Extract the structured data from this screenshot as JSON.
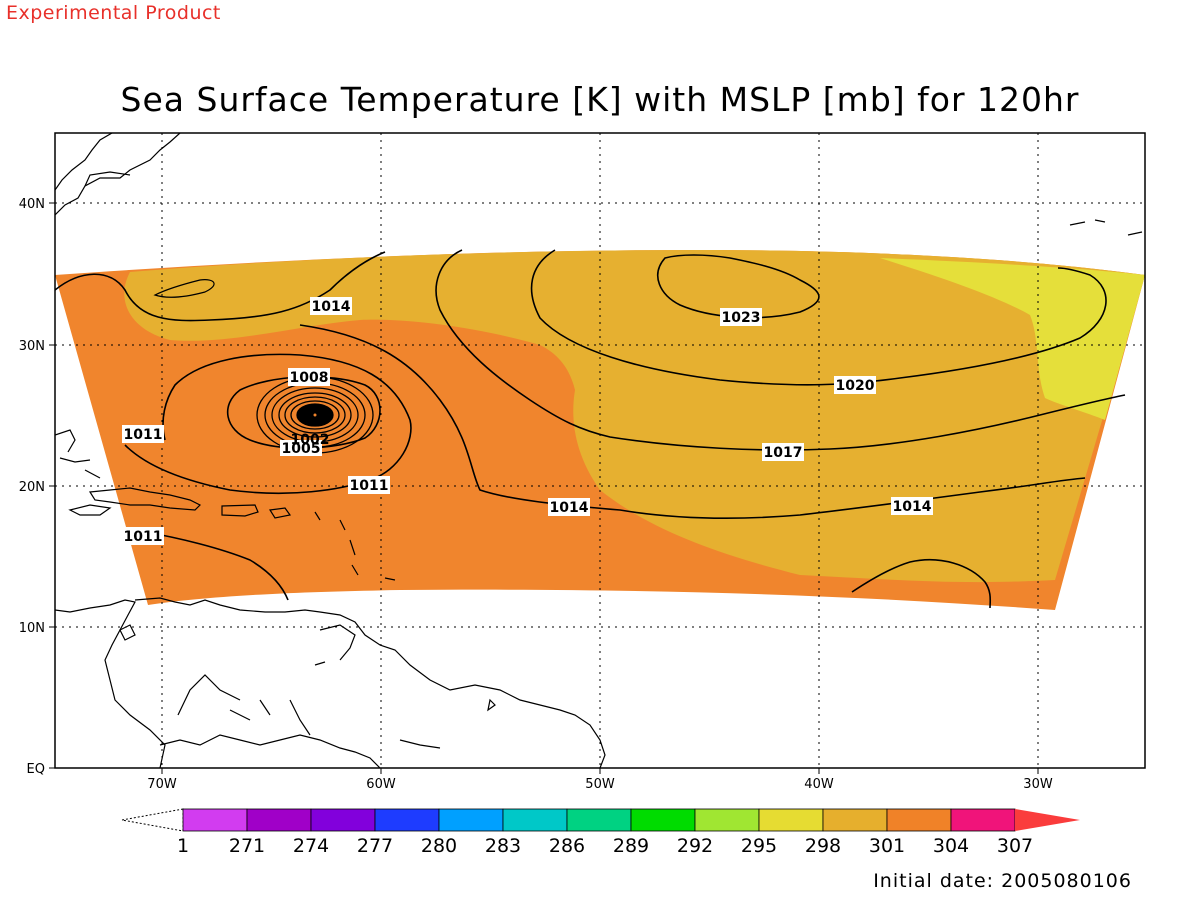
{
  "header": {
    "experimental": "Experimental Product",
    "title": "Sea Surface Temperature [K] with MSLP [mb] for 120hr",
    "initial_date": "Initial date: 2005080106"
  },
  "map": {
    "lat_labels": [
      "40N",
      "30N",
      "20N",
      "10N",
      "EQ"
    ],
    "lon_labels": [
      "70W",
      "60W",
      "50W",
      "40W",
      "30W"
    ],
    "sst_colors": {
      "warm_304": "#f0852d",
      "mid_301": "#e6b030",
      "cool_298": "#e5df3a"
    },
    "isobar_labels": [
      "1014",
      "1023",
      "1008",
      "1020",
      "1011",
      "1017",
      "1005",
      "1002",
      "1011",
      "1014",
      "1014",
      "1011"
    ],
    "storm_center_value": "1002"
  },
  "colorbar": {
    "colors": [
      "#d23cf0",
      "#a000c8",
      "#8200dc",
      "#1e3cff",
      "#00a0ff",
      "#00c8c8",
      "#00d282",
      "#00dc00",
      "#a0e632",
      "#e6dc32",
      "#e6af2d",
      "#f08228",
      "#f0147a",
      "#fa3c3c"
    ],
    "labels": [
      "1",
      "271",
      "274",
      "277",
      "280",
      "283",
      "286",
      "289",
      "292",
      "295",
      "298",
      "301",
      "304",
      "307"
    ]
  }
}
